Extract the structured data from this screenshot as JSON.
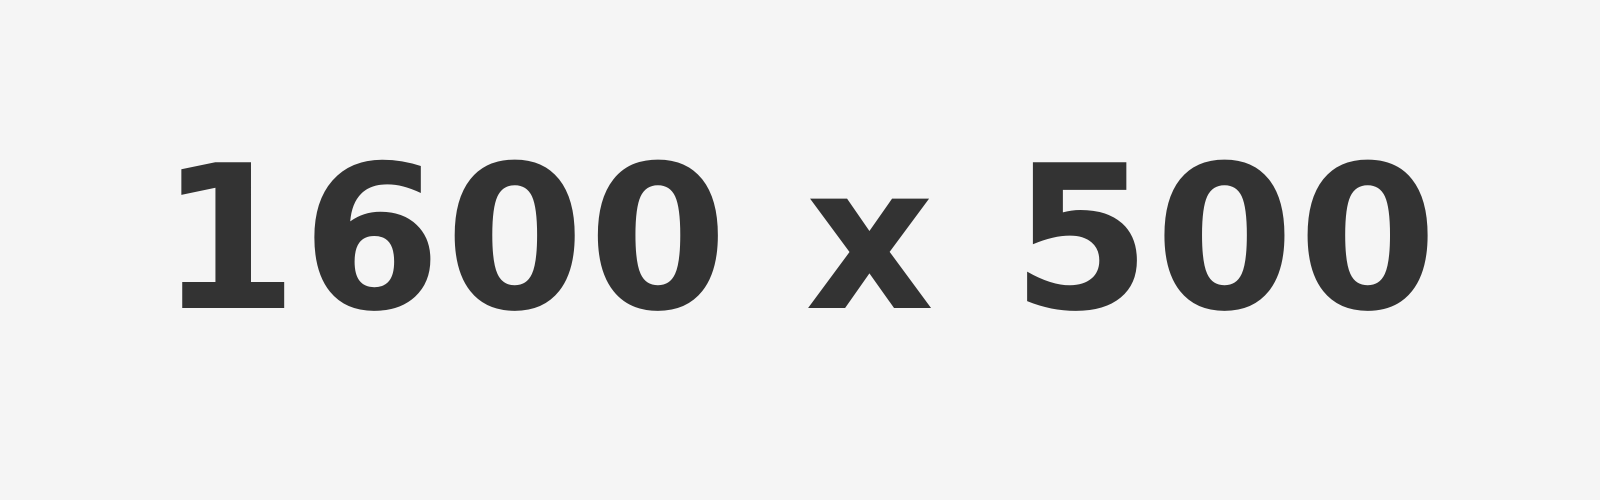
{
  "placeholder": {
    "text": "1600 x 500",
    "background_color": "#f5f5f5",
    "text_color": "#333333"
  }
}
